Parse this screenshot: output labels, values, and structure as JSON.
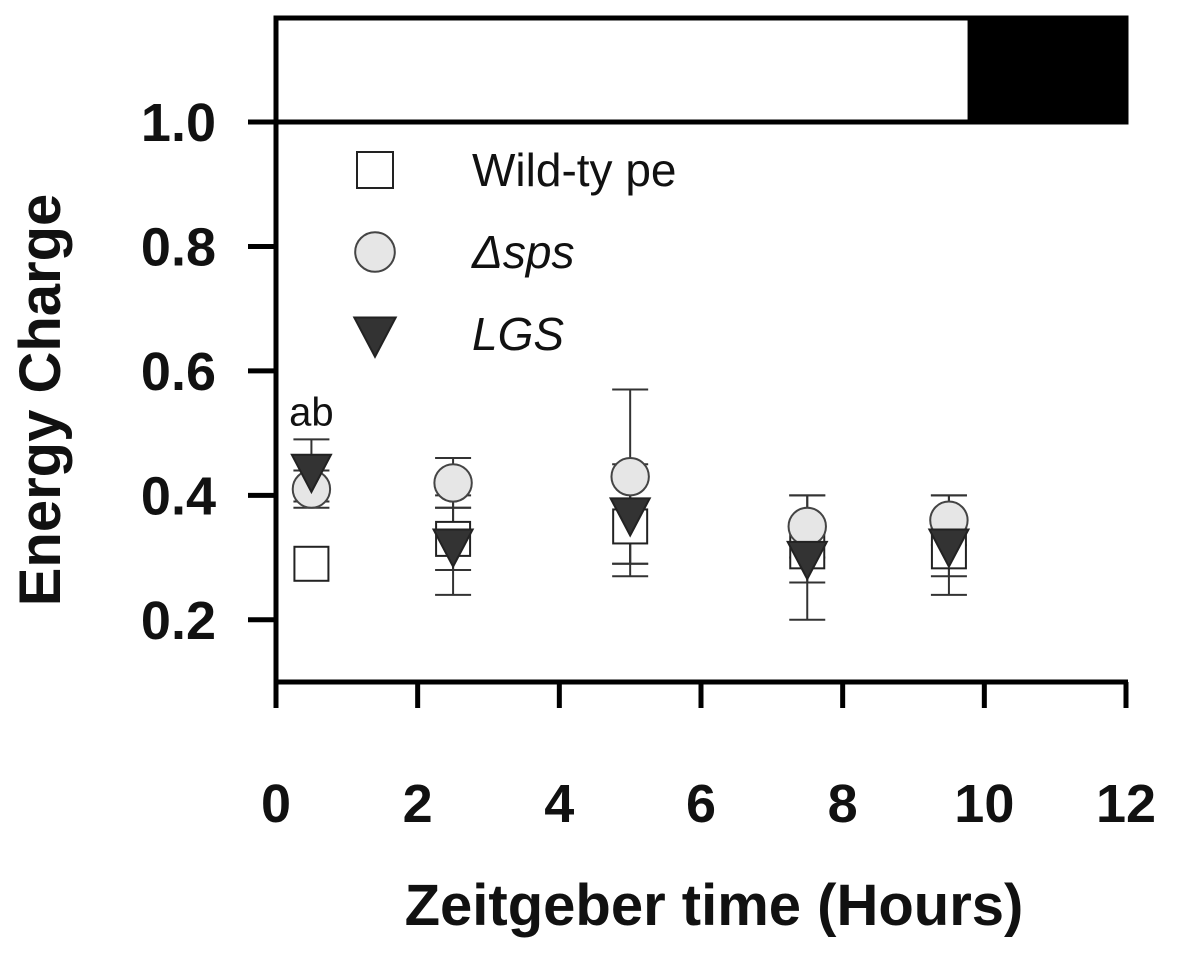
{
  "chart_data": {
    "type": "scatter",
    "xlabel": "Zeitgeber time (Hours)",
    "ylabel": "Energy Charge",
    "xlim": [
      0,
      12
    ],
    "ylim": [
      0.1,
      1.0
    ],
    "x_ticks": [
      "0",
      "2",
      "4",
      "6",
      "8",
      "10",
      "12"
    ],
    "y_ticks": [
      "0.2",
      "0.4",
      "0.6",
      "0.8",
      "1.0"
    ],
    "grid": false,
    "legend_position": "top-left",
    "photoperiod_bar": {
      "light": [
        0,
        9.8
      ],
      "dark": [
        9.8,
        12
      ]
    },
    "series": [
      {
        "name": "Wild-ty pe",
        "marker": "square",
        "fill": "#ffffff",
        "x": [
          0.5,
          2.5,
          5.0,
          7.5,
          9.5
        ],
        "y": [
          0.29,
          0.33,
          0.35,
          0.31,
          0.31
        ],
        "err": [
          0.0,
          0.05,
          0.08,
          0.05,
          0.04
        ]
      },
      {
        "name": "Δsps",
        "marker": "circle",
        "fill": "#e6e6e6",
        "x": [
          0.5,
          2.5,
          5.0,
          7.5,
          9.5
        ],
        "y": [
          0.41,
          0.42,
          0.43,
          0.35,
          0.36
        ],
        "err": [
          0.03,
          0.04,
          0.14,
          0.05,
          0.04
        ]
      },
      {
        "name": "LGS",
        "marker": "triangle-down",
        "fill": "#333333",
        "x": [
          0.5,
          2.5,
          5.0,
          7.5,
          9.5
        ],
        "y": [
          0.44,
          0.32,
          0.37,
          0.3,
          0.32
        ],
        "err": [
          0.05,
          0.08,
          0.08,
          0.1,
          0.08
        ]
      }
    ],
    "annotations": [
      {
        "text": "ab",
        "x": 0.5,
        "y": 0.49
      }
    ]
  }
}
